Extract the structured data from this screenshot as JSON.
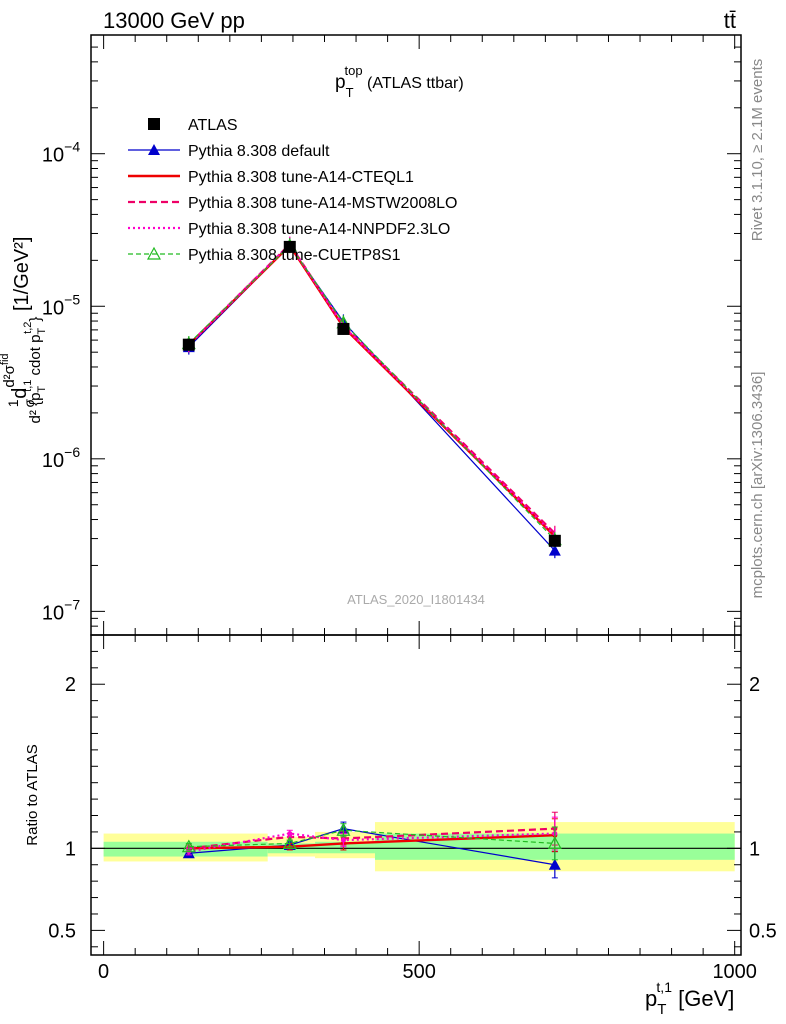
{
  "header": {
    "left": "13000 GeV pp",
    "right": "tt̄"
  },
  "side": {
    "rivet": "Rivet 3.1.10, ≥ 2.1M events",
    "mcplots": "mcplots.cern.ch [arXiv:1306.3436]"
  },
  "watermark": "ATLAS_2020_I1801434",
  "chart_data": [
    {
      "type": "line",
      "panel": "main",
      "title": "p_T^top (ATLAS ttbar)",
      "title_parts": {
        "base": "p",
        "sub": "T",
        "sup": "top",
        "rest": " (ATLAS ttbar)"
      },
      "xlabel": "p_T^{t,1} [GeV]",
      "xlabel_parts": {
        "base": "p",
        "sub": "T",
        "sup": "t,1",
        "rest": " [GeV]"
      },
      "ylabel": "d²σ^{fid} / (σ d²{p_T^{t,1} cdot p_T^{t,2}}) [1/GeV²]",
      "ylabel_parts": {
        "frac1_num": "1",
        "frac1_den": "σ",
        "d": "d",
        "frac2_num": "d²σ",
        "frac2_num_sup": "fid",
        "frac2_den": "d² {p",
        "frac2_den_mid": " cdot p",
        "frac2_den_sup1": "t,1",
        "frac2_den_sup2": "t,2",
        "frac2_den_sub": "T",
        "frac2_den_end": "}",
        "unit": " [1/GeV²]"
      },
      "xlim": [
        -20,
        1010
      ],
      "ylim": [
        7e-08,
        0.0006
      ],
      "yscale": "log",
      "yticks": [
        1e-07,
        1e-06,
        1e-05,
        0.0001
      ],
      "ytick_labels": [
        {
          "base": "10",
          "exp": "−7"
        },
        {
          "base": "10",
          "exp": "−6"
        },
        {
          "base": "10",
          "exp": "−5"
        },
        {
          "base": "10",
          "exp": "−4"
        }
      ],
      "legend_position": "top-left",
      "series": [
        {
          "name": "ATLAS",
          "color": "#000000",
          "style": "data",
          "marker": "square",
          "x": [
            135,
            295,
            380,
            715
          ],
          "y": [
            5.6e-06,
            2.45e-05,
            7.1e-06,
            2.9e-07
          ]
        },
        {
          "name": "Pythia 8.308 default",
          "color": "#0000cc",
          "style": "solid-thin",
          "marker": "triangle",
          "x": [
            135,
            295,
            380,
            715
          ],
          "y": [
            5.4e-06,
            2.5e-05,
            7.9e-06,
            2.5e-07
          ]
        },
        {
          "name": "Pythia 8.308 tune-A14-CTEQL1",
          "color": "#ee0000",
          "style": "solid-thick",
          "marker": "none",
          "x": [
            135,
            295,
            380,
            715
          ],
          "y": [
            5.6e-06,
            2.5e-05,
            7.3e-06,
            3.1e-07
          ]
        },
        {
          "name": "Pythia 8.308 tune-A14-MSTW2008LO",
          "color": "#ee0066",
          "style": "dashed",
          "marker": "none",
          "x": [
            135,
            295,
            380,
            715
          ],
          "y": [
            5.6e-06,
            2.55e-05,
            7.5e-06,
            3.25e-07
          ]
        },
        {
          "name": "Pythia 8.308 tune-A14-NNPDF2.3LO",
          "color": "#ff00cc",
          "style": "dotted",
          "marker": "none",
          "x": [
            135,
            295,
            380,
            715
          ],
          "y": [
            5.6e-06,
            2.55e-05,
            7.4e-06,
            3.15e-07
          ]
        },
        {
          "name": "Pythia 8.308 tune-CUETP8S1",
          "color": "#22bb22",
          "style": "dashed-fine",
          "marker": "open-triangle",
          "x": [
            135,
            295,
            380,
            715
          ],
          "y": [
            5.7e-06,
            2.5e-05,
            7.8e-06,
            2.95e-07
          ]
        }
      ]
    },
    {
      "type": "line",
      "panel": "ratio",
      "ylabel": "Ratio to ATLAS",
      "xlabel": "p_T^{t,1} [GeV]",
      "xlim": [
        -20,
        1010
      ],
      "ylim": [
        0.35,
        2.3
      ],
      "xticks": [
        0,
        500,
        1000
      ],
      "xtick_labels": [
        "0",
        "500",
        "1000"
      ],
      "yticks": [
        0.5,
        1,
        2
      ],
      "ytick_labels": [
        "0.5",
        "1",
        "2"
      ],
      "bands": [
        {
          "x0": 0,
          "x1": 260,
          "inner": [
            0.95,
            1.04
          ],
          "outer": [
            0.92,
            1.09
          ]
        },
        {
          "x0": 260,
          "x1": 335,
          "inner": [
            0.97,
            1.03
          ],
          "outer": [
            0.95,
            1.07
          ]
        },
        {
          "x0": 335,
          "x1": 430,
          "inner": [
            0.97,
            1.04
          ],
          "outer": [
            0.94,
            1.1
          ]
        },
        {
          "x0": 430,
          "x1": 1000,
          "inner": [
            0.93,
            1.09
          ],
          "outer": [
            0.86,
            1.16
          ]
        }
      ],
      "series": [
        {
          "name": "Pythia 8.308 default",
          "color": "#0000cc",
          "x": [
            135,
            295,
            380,
            715
          ],
          "y": [
            0.97,
            1.02,
            1.12,
            0.9
          ],
          "err": [
            0.02,
            0.02,
            0.04,
            0.08
          ]
        },
        {
          "name": "Pythia 8.308 tune-A14-CTEQL1",
          "color": "#ee0000",
          "x": [
            135,
            295,
            380,
            715
          ],
          "y": [
            1.0,
            1.01,
            1.03,
            1.08
          ],
          "err": [
            0.02,
            0.02,
            0.04,
            0.1
          ]
        },
        {
          "name": "Pythia 8.308 tune-A14-MSTW2008LO",
          "color": "#ee0066",
          "x": [
            135,
            295,
            380,
            715
          ],
          "y": [
            1.0,
            1.07,
            1.06,
            1.12
          ],
          "err": [
            0.02,
            0.02,
            0.04,
            0.1
          ]
        },
        {
          "name": "Pythia 8.308 tune-A14-NNPDF2.3LO",
          "color": "#ff00cc",
          "x": [
            135,
            295,
            380,
            715
          ],
          "y": [
            0.98,
            1.09,
            1.05,
            1.09
          ],
          "err": [
            0.02,
            0.02,
            0.04,
            0.1
          ]
        },
        {
          "name": "Pythia 8.308 tune-CUETP8S1",
          "color": "#22bb22",
          "x": [
            135,
            295,
            380,
            715
          ],
          "y": [
            1.01,
            1.03,
            1.11,
            1.03
          ],
          "err": [
            0.02,
            0.02,
            0.04,
            0.1
          ]
        }
      ]
    }
  ]
}
